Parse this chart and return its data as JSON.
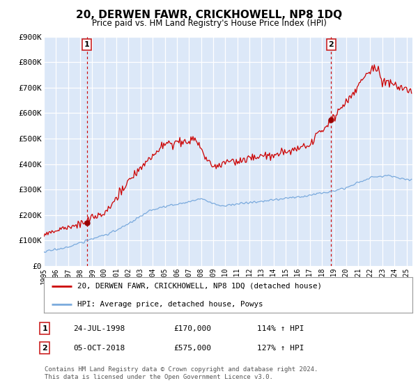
{
  "title": "20, DERWEN FAWR, CRICKHOWELL, NP8 1DQ",
  "subtitle": "Price paid vs. HM Land Registry's House Price Index (HPI)",
  "ylim": [
    0,
    900000
  ],
  "yticks": [
    0,
    100000,
    200000,
    300000,
    400000,
    500000,
    600000,
    700000,
    800000,
    900000
  ],
  "ytick_labels": [
    "£0",
    "£100K",
    "£200K",
    "£300K",
    "£400K",
    "£500K",
    "£600K",
    "£700K",
    "£800K",
    "£900K"
  ],
  "xlim_start": 1995.0,
  "xlim_end": 2025.5,
  "bg_color": "#dce8f8",
  "grid_color": "#ffffff",
  "red_line_color": "#cc0000",
  "blue_line_color": "#7aaadd",
  "marker_color": "#990000",
  "dashed_color": "#cc0000",
  "marker1_x": 1998.56,
  "marker1_y": 170000,
  "marker2_x": 2018.76,
  "marker2_y": 575000,
  "label1_text": "1",
  "label2_text": "2",
  "legend_line1": "20, DERWEN FAWR, CRICKHOWELL, NP8 1DQ (detached house)",
  "legend_line2": "HPI: Average price, detached house, Powys",
  "ann1_num": "1",
  "ann1_date": "24-JUL-1998",
  "ann1_price": "£170,000",
  "ann1_hpi": "114% ↑ HPI",
  "ann2_num": "2",
  "ann2_date": "05-OCT-2018",
  "ann2_price": "£575,000",
  "ann2_hpi": "127% ↑ HPI",
  "footer": "Contains HM Land Registry data © Crown copyright and database right 2024.\nThis data is licensed under the Open Government Licence v3.0."
}
